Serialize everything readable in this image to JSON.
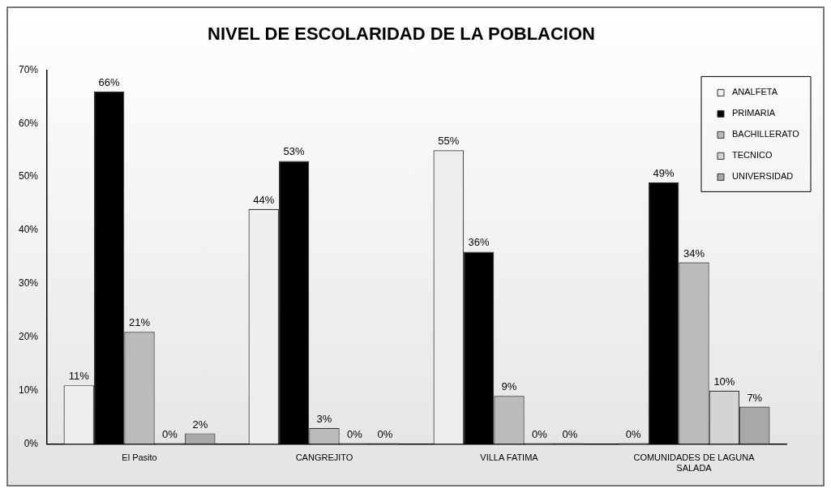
{
  "chart_data": {
    "type": "bar",
    "title": "NIVEL DE ESCOLARIDAD DE LA POBLACION",
    "categories": [
      "El Pasito",
      "CANGREJITO",
      "VILLA FATIMA",
      "COMUNIDADES DE LAGUNA SALADA"
    ],
    "series": [
      {
        "name": "ANALFETA",
        "color": "#eeeeee",
        "values": [
          11,
          44,
          55,
          0
        ],
        "value_labels": [
          "11%",
          "44%",
          "55%",
          "0%"
        ]
      },
      {
        "name": "PRIMARIA",
        "color": "#000000",
        "values": [
          66,
          53,
          36,
          49
        ],
        "value_labels": [
          "66%",
          "53%",
          "36%",
          "49%"
        ]
      },
      {
        "name": "BACHILLERATO",
        "color": "#bbbbbb",
        "values": [
          21,
          3,
          9,
          34
        ],
        "value_labels": [
          "21%",
          "3%",
          "9%",
          "34%"
        ]
      },
      {
        "name": "TECNICO",
        "color": "#d4d4d4",
        "values": [
          0,
          0,
          0,
          10
        ],
        "value_labels": [
          "0%",
          "0%",
          "0%",
          "10%"
        ]
      },
      {
        "name": "UNIVERSIDAD",
        "color": "#a8a8a8",
        "values": [
          2,
          0,
          0,
          7
        ],
        "value_labels": [
          "2%",
          "0%",
          "0%",
          "7%"
        ]
      }
    ],
    "ylim": [
      0,
      70
    ],
    "yticks": [
      {
        "value": 0,
        "label": "0%"
      },
      {
        "value": 10,
        "label": "10%"
      },
      {
        "value": 20,
        "label": "20%"
      },
      {
        "value": 30,
        "label": "30%"
      },
      {
        "value": 40,
        "label": "40%"
      },
      {
        "value": 50,
        "label": "50%"
      },
      {
        "value": 60,
        "label": "60%"
      },
      {
        "value": 70,
        "label": "70%"
      }
    ],
    "grid": false,
    "legend": "top right"
  }
}
